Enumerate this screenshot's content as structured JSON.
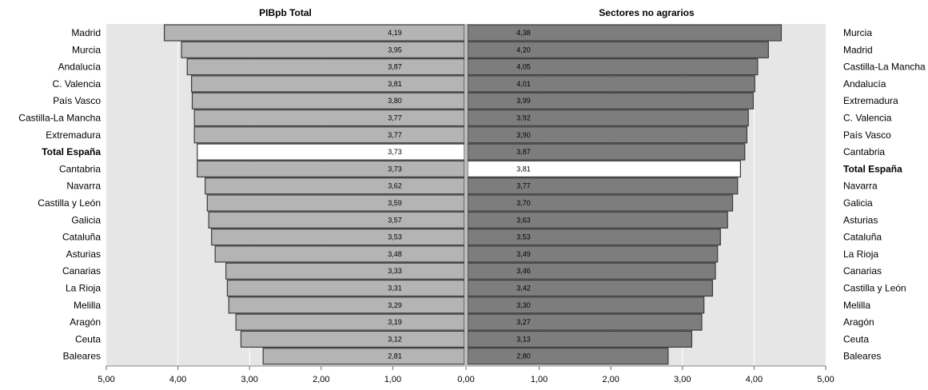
{
  "chart_data": {
    "type": "bar",
    "colors": {
      "left_bar": "#b4b4b4",
      "right_bar": "#7d7d7d",
      "highlight": "#ffffff",
      "plot_bg": "#e6e6e6"
    },
    "xlim": [
      0,
      5
    ],
    "ticks": [
      "5,00",
      "4,00",
      "3,00",
      "2,00",
      "1,00",
      "0,00",
      "1,00",
      "2,00",
      "3,00",
      "4,00",
      "5,00"
    ],
    "panels": [
      {
        "title": "PIBpb Total",
        "categories": [
          "Madrid",
          "Murcia",
          "Andalucía",
          "C. Valencia",
          "País Vasco",
          "Castilla-La Mancha",
          "Extremadura",
          "Total España",
          "Cantabria",
          "Navarra",
          "Castilla y León",
          "Galicia",
          "Cataluña",
          "Asturias",
          "Canarias",
          "La Rioja",
          "Melilla",
          "Aragón",
          "Ceuta",
          "Baleares"
        ],
        "values": [
          4.19,
          3.95,
          3.87,
          3.81,
          3.8,
          3.77,
          3.77,
          3.73,
          3.73,
          3.62,
          3.59,
          3.57,
          3.53,
          3.48,
          3.33,
          3.31,
          3.29,
          3.19,
          3.12,
          2.81
        ],
        "labels": [
          "4,19",
          "3,95",
          "3,87",
          "3,81",
          "3,80",
          "3,77",
          "3,77",
          "3,73",
          "3,73",
          "3,62",
          "3,59",
          "3,57",
          "3,53",
          "3,48",
          "3,33",
          "3,31",
          "3,29",
          "3,19",
          "3,12",
          "2,81"
        ],
        "highlight": "Total España"
      },
      {
        "title": "Sectores no agrarios",
        "categories": [
          "Murcia",
          "Madrid",
          "Castilla-La Mancha",
          "Andalucía",
          "Extremadura",
          "C. Valencia",
          "País Vasco",
          "Cantabria",
          "Total España",
          "Navarra",
          "Galicia",
          "Asturias",
          "Cataluña",
          "La Rioja",
          "Canarias",
          "Castilla y León",
          "Melilla",
          "Aragón",
          "Ceuta",
          "Baleares"
        ],
        "values": [
          4.38,
          4.2,
          4.05,
          4.01,
          3.99,
          3.92,
          3.9,
          3.87,
          3.81,
          3.77,
          3.7,
          3.63,
          3.53,
          3.49,
          3.46,
          3.42,
          3.3,
          3.27,
          3.13,
          2.8
        ],
        "labels": [
          "4,38",
          "4,20",
          "4,05",
          "4,01",
          "3,99",
          "3,92",
          "3,90",
          "3,87",
          "3,81",
          "3,77",
          "3,70",
          "3,63",
          "3,53",
          "3,49",
          "3,46",
          "3,42",
          "3,30",
          "3,27",
          "3,13",
          "2,80"
        ],
        "highlight": "Total España"
      }
    ]
  }
}
